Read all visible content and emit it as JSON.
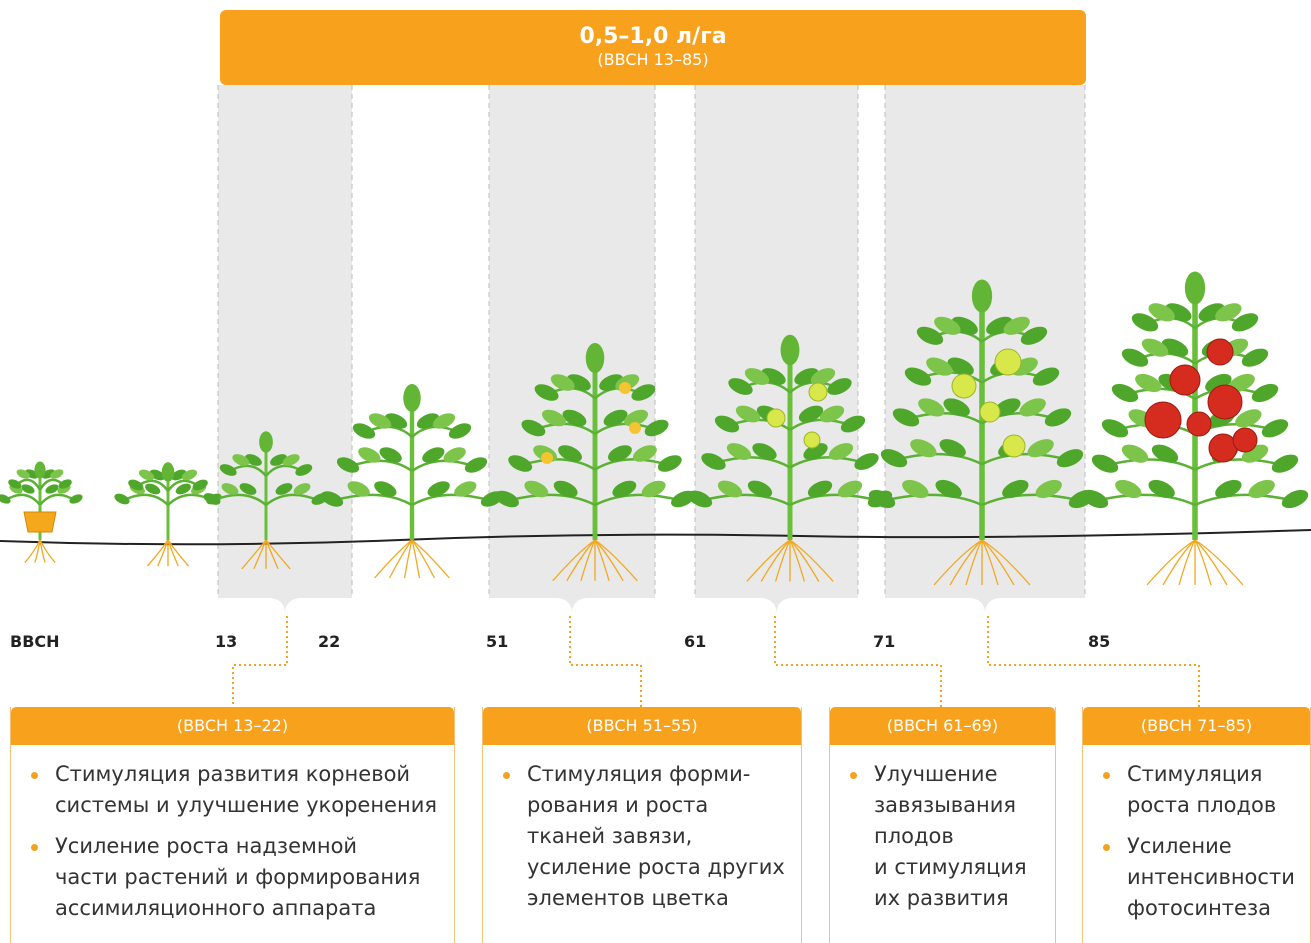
{
  "header": {
    "dose": "0,5–1,0 л/га",
    "range": "(BBCH 13–85)"
  },
  "scale": {
    "label": "BBCH",
    "stages": [
      "13",
      "22",
      "51",
      "61",
      "71",
      "85"
    ]
  },
  "boxes": [
    {
      "title": "(BBCH 13–22)",
      "items": [
        "Стимуляция развития корневой\nсистемы и улучшение укоренения",
        "Усиление роста надземной\nчасти растений и формирования\nассимиляционного аппарата"
      ]
    },
    {
      "title": "(BBCH 51–55)",
      "items": [
        "Стимуляция форми-\nрования и роста\nтканей завязи,\nусиление роста других\nэлементов цветка"
      ]
    },
    {
      "title": "(BBCH 61–69)",
      "items": [
        "Улучшение\nзавязывания\nплодов\nи стимуляция\nих развития"
      ]
    },
    {
      "title": "(BBCH 71–85)",
      "items": [
        "Стимуляция\nроста плодов",
        "Усиление\nинтенсивности\nфотосинтеза"
      ]
    }
  ]
}
